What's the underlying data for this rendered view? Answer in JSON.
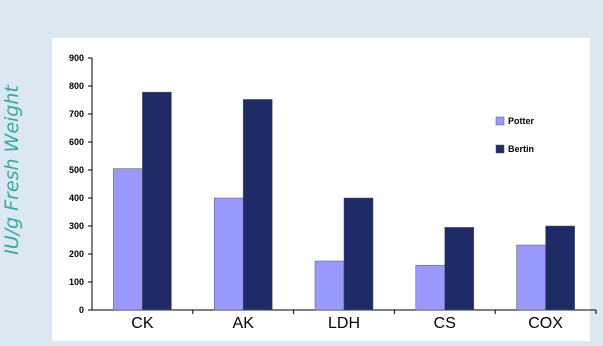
{
  "chart_data": {
    "type": "bar",
    "title": "",
    "xlabel": "",
    "ylabel": "IU/g Fresh Weight",
    "categories": [
      "CK",
      "AK",
      "LDH",
      "CS",
      "COX"
    ],
    "series": [
      {
        "name": "Potter",
        "values": [
          505,
          400,
          175,
          160,
          232
        ],
        "color": "#9999ff"
      },
      {
        "name": "Bertin",
        "values": [
          778,
          752,
          400,
          295,
          300
        ],
        "color": "#1f2b66"
      }
    ],
    "ylim": [
      0,
      900
    ],
    "yticks": [
      "0",
      "100",
      "200",
      "300",
      "400",
      "500",
      "600",
      "700",
      "800",
      "900"
    ],
    "grid": false,
    "legend": "right"
  }
}
